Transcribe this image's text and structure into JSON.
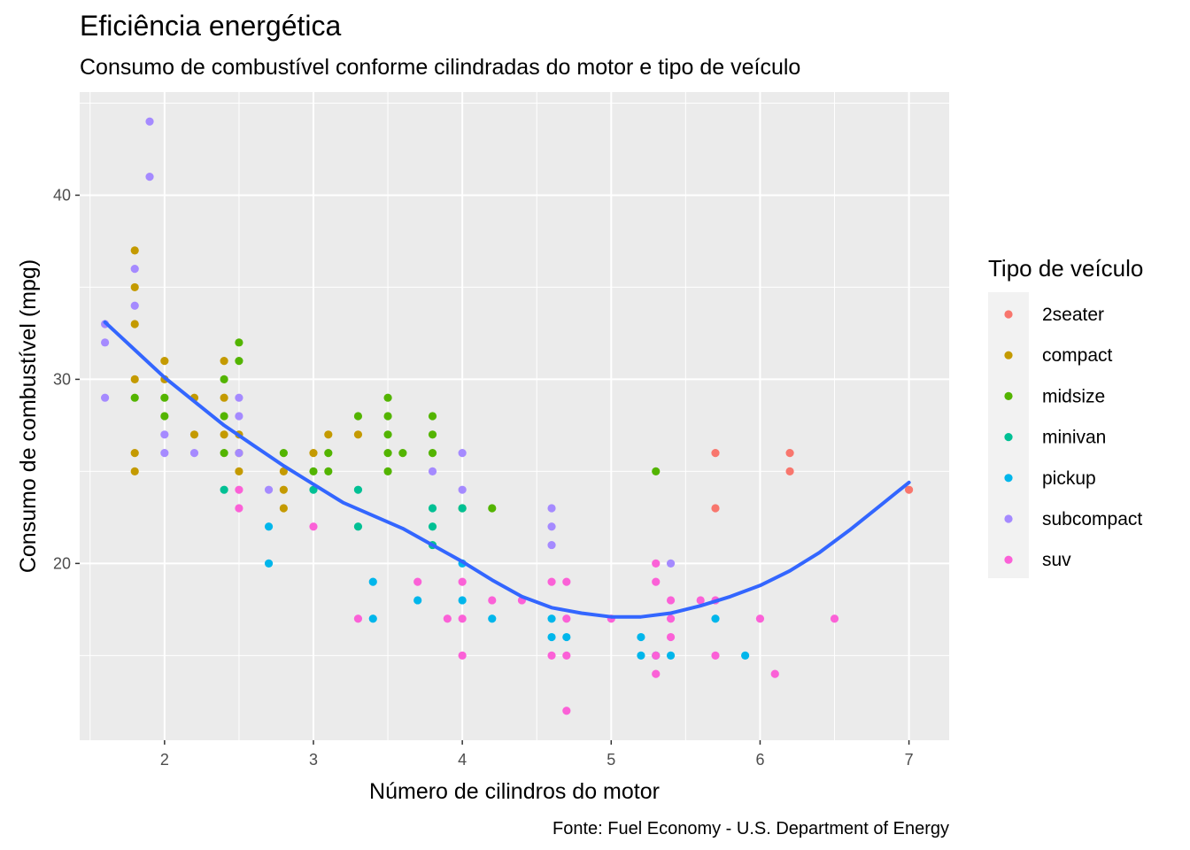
{
  "chart_data": {
    "type": "scatter",
    "title": "Eficiência energética",
    "subtitle": "Consumo de combustível conforme cilindradas do motor e tipo de veículo",
    "caption": "Fonte: Fuel Economy - U.S. Department of Energy",
    "xlabel": "Número de cilindros do motor",
    "ylabel": "Consumo de combustível (mpg)",
    "xlim": [
      1.43,
      7.27
    ],
    "ylim": [
      10.4,
      45.6
    ],
    "x_ticks": [
      2,
      3,
      4,
      5,
      6,
      7
    ],
    "y_ticks": [
      20,
      30,
      40
    ],
    "grid": true,
    "legend": {
      "title": "Tipo de veículo",
      "position": "right"
    },
    "series": [
      {
        "name": "2seater",
        "color": "#F8766D",
        "points": [
          [
            5.7,
            26
          ],
          [
            5.7,
            23
          ],
          [
            6.2,
            26
          ],
          [
            6.2,
            25
          ],
          [
            7.0,
            24
          ]
        ]
      },
      {
        "name": "compact",
        "color": "#C49A00",
        "points": [
          [
            1.8,
            37
          ],
          [
            1.8,
            35
          ],
          [
            1.8,
            33
          ],
          [
            1.8,
            30
          ],
          [
            1.8,
            26
          ],
          [
            1.8,
            25
          ],
          [
            2.0,
            31
          ],
          [
            2.0,
            30
          ],
          [
            2.2,
            29
          ],
          [
            2.2,
            27
          ],
          [
            2.4,
            31
          ],
          [
            2.4,
            29
          ],
          [
            2.4,
            27
          ],
          [
            2.5,
            27
          ],
          [
            2.5,
            26
          ],
          [
            2.5,
            25
          ],
          [
            2.8,
            25
          ],
          [
            2.8,
            24
          ],
          [
            2.8,
            23
          ],
          [
            3.0,
            26
          ],
          [
            3.1,
            27
          ],
          [
            3.3,
            27
          ]
        ]
      },
      {
        "name": "midsize",
        "color": "#53B400",
        "points": [
          [
            1.8,
            29
          ],
          [
            2.0,
            29
          ],
          [
            2.0,
            28
          ],
          [
            2.4,
            30
          ],
          [
            2.4,
            28
          ],
          [
            2.4,
            26
          ],
          [
            2.5,
            32
          ],
          [
            2.5,
            31
          ],
          [
            2.8,
            26
          ],
          [
            3.0,
            25
          ],
          [
            3.1,
            26
          ],
          [
            3.1,
            25
          ],
          [
            3.3,
            28
          ],
          [
            3.5,
            29
          ],
          [
            3.5,
            28
          ],
          [
            3.5,
            27
          ],
          [
            3.5,
            26
          ],
          [
            3.5,
            25
          ],
          [
            3.6,
            26
          ],
          [
            3.8,
            28
          ],
          [
            3.8,
            27
          ],
          [
            3.8,
            26
          ],
          [
            4.0,
            23
          ],
          [
            4.2,
            23
          ],
          [
            5.3,
            25
          ]
        ]
      },
      {
        "name": "minivan",
        "color": "#00C094",
        "points": [
          [
            2.4,
            24
          ],
          [
            3.0,
            24
          ],
          [
            3.3,
            24
          ],
          [
            3.3,
            22
          ],
          [
            3.8,
            23
          ],
          [
            3.8,
            22
          ],
          [
            3.8,
            21
          ],
          [
            4.0,
            23
          ]
        ]
      },
      {
        "name": "pickup",
        "color": "#00B6EB",
        "points": [
          [
            2.7,
            22
          ],
          [
            2.7,
            20
          ],
          [
            3.4,
            19
          ],
          [
            3.4,
            17
          ],
          [
            3.7,
            18
          ],
          [
            4.0,
            20
          ],
          [
            4.0,
            18
          ],
          [
            4.2,
            17
          ],
          [
            4.6,
            17
          ],
          [
            4.6,
            16
          ],
          [
            4.7,
            16
          ],
          [
            5.2,
            16
          ],
          [
            5.2,
            15
          ],
          [
            5.3,
            15
          ],
          [
            5.4,
            15
          ],
          [
            5.7,
            17
          ],
          [
            5.9,
            15
          ]
        ]
      },
      {
        "name": "subcompact",
        "color": "#A58AFF",
        "points": [
          [
            1.6,
            33
          ],
          [
            1.6,
            32
          ],
          [
            1.6,
            29
          ],
          [
            1.8,
            36
          ],
          [
            1.8,
            34
          ],
          [
            1.9,
            44
          ],
          [
            1.9,
            41
          ],
          [
            2.0,
            27
          ],
          [
            2.0,
            26
          ],
          [
            2.2,
            26
          ],
          [
            2.5,
            29
          ],
          [
            2.5,
            28
          ],
          [
            2.5,
            26
          ],
          [
            2.7,
            24
          ],
          [
            3.8,
            25
          ],
          [
            4.0,
            26
          ],
          [
            4.0,
            24
          ],
          [
            4.6,
            23
          ],
          [
            4.6,
            22
          ],
          [
            4.6,
            21
          ],
          [
            5.4,
            20
          ]
        ]
      },
      {
        "name": "suv",
        "color": "#FB61D7",
        "points": [
          [
            2.5,
            24
          ],
          [
            2.5,
            23
          ],
          [
            3.0,
            22
          ],
          [
            3.3,
            17
          ],
          [
            3.7,
            19
          ],
          [
            3.9,
            17
          ],
          [
            4.0,
            19
          ],
          [
            4.0,
            17
          ],
          [
            4.0,
            15
          ],
          [
            4.2,
            18
          ],
          [
            4.4,
            18
          ],
          [
            4.6,
            19
          ],
          [
            4.6,
            15
          ],
          [
            4.7,
            19
          ],
          [
            4.7,
            17
          ],
          [
            4.7,
            15
          ],
          [
            4.7,
            12
          ],
          [
            5.0,
            17
          ],
          [
            5.3,
            20
          ],
          [
            5.3,
            19
          ],
          [
            5.3,
            15
          ],
          [
            5.3,
            14
          ],
          [
            5.4,
            18
          ],
          [
            5.4,
            17
          ],
          [
            5.4,
            16
          ],
          [
            5.6,
            18
          ],
          [
            5.7,
            18
          ],
          [
            5.7,
            15
          ],
          [
            6.0,
            17
          ],
          [
            6.1,
            14
          ],
          [
            6.5,
            17
          ]
        ]
      }
    ],
    "smooth": {
      "name": "loess",
      "color": "#3366FF",
      "x": [
        1.6,
        1.8,
        2.0,
        2.2,
        2.4,
        2.6,
        2.8,
        3.0,
        3.2,
        3.4,
        3.6,
        3.8,
        4.0,
        4.2,
        4.4,
        4.6,
        4.8,
        5.0,
        5.2,
        5.4,
        5.6,
        5.8,
        6.0,
        6.2,
        6.4,
        6.6,
        6.8,
        7.0
      ],
      "y": [
        33.1,
        31.6,
        30.1,
        28.8,
        27.5,
        26.4,
        25.3,
        24.3,
        23.3,
        22.6,
        21.9,
        21.0,
        20.1,
        19.1,
        18.2,
        17.6,
        17.3,
        17.1,
        17.1,
        17.3,
        17.7,
        18.2,
        18.8,
        19.6,
        20.6,
        21.8,
        23.1,
        24.4
      ]
    }
  }
}
